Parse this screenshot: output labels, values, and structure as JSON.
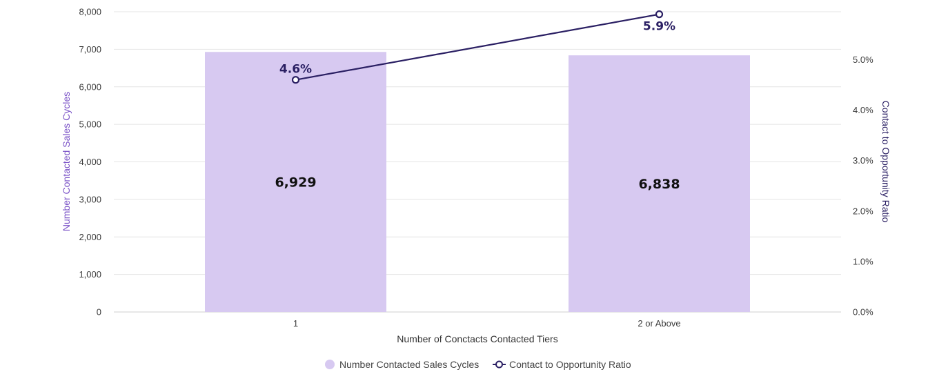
{
  "chart_data": {
    "type": "bar",
    "categories": [
      "1",
      "2 or Above"
    ],
    "series": [
      {
        "name": "Number Contacted Sales Cycles",
        "type": "bar",
        "axis": "left",
        "values": [
          6929,
          6838
        ],
        "value_labels": [
          "6,929",
          "6,838"
        ]
      },
      {
        "name": "Contact to Opportunity Ratio",
        "type": "line",
        "axis": "right",
        "values": [
          4.6,
          5.9
        ],
        "value_labels": [
          "4.6%",
          "5.9%"
        ]
      }
    ],
    "xlabel": "Number of Conctacts Contacted Tiers",
    "ylabel": "Number Contacted Sales Cycles",
    "y2label": "Contact to Opportunity Ratio",
    "ylim": [
      0,
      8000
    ],
    "y2lim": [
      0,
      5.95
    ],
    "yticks": [
      0,
      1000,
      2000,
      3000,
      4000,
      5000,
      6000,
      7000,
      8000
    ],
    "ytick_labels": [
      "0",
      "1,000",
      "2,000",
      "3,000",
      "4,000",
      "5,000",
      "6,000",
      "7,000",
      "8,000"
    ],
    "y2ticks": [
      0,
      1,
      2,
      3,
      4,
      5
    ],
    "y2tick_labels": [
      "0.0%",
      "1.0%",
      "2.0%",
      "3.0%",
      "4.0%",
      "5.0%"
    ],
    "grid": true,
    "legend_position": "bottom-center",
    "colors": {
      "bar": "#d7c9f1",
      "line": "#2a1f63",
      "ylabel": "#7a52c7",
      "y2label": "#2a1f63",
      "grid": "#e4e4e4"
    }
  }
}
